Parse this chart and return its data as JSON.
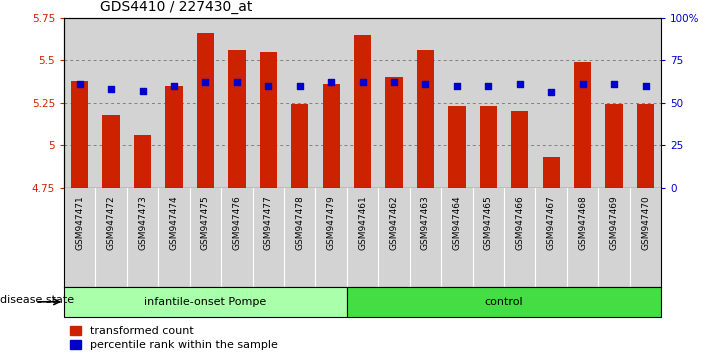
{
  "title": "GDS4410 / 227430_at",
  "samples": [
    "GSM947471",
    "GSM947472",
    "GSM947473",
    "GSM947474",
    "GSM947475",
    "GSM947476",
    "GSM947477",
    "GSM947478",
    "GSM947479",
    "GSM947461",
    "GSM947462",
    "GSM947463",
    "GSM947464",
    "GSM947465",
    "GSM947466",
    "GSM947467",
    "GSM947468",
    "GSM947469",
    "GSM947470"
  ],
  "bar_values": [
    5.38,
    5.18,
    5.06,
    5.35,
    5.66,
    5.56,
    5.55,
    5.24,
    5.36,
    5.65,
    5.4,
    5.56,
    5.23,
    5.23,
    5.2,
    4.93,
    5.49,
    5.24,
    5.24
  ],
  "dot_values": [
    5.36,
    5.33,
    5.32,
    5.35,
    5.37,
    5.37,
    5.35,
    5.35,
    5.37,
    5.37,
    5.37,
    5.36,
    5.35,
    5.35,
    5.36,
    5.31,
    5.36,
    5.36,
    5.35
  ],
  "groups": [
    {
      "label": "infantile-onset Pompe",
      "start": 0,
      "end": 9,
      "color": "#aaffaa"
    },
    {
      "label": "control",
      "start": 9,
      "end": 19,
      "color": "#44dd44"
    }
  ],
  "ymin": 4.75,
  "ymax": 5.75,
  "yticks": [
    4.75,
    5.0,
    5.25,
    5.5,
    5.75
  ],
  "ytick_labels": [
    "4.75",
    "5",
    "5.25",
    "5.5",
    "5.75"
  ],
  "grid_ticks": [
    5.0,
    5.25,
    5.5
  ],
  "right_yticks": [
    0,
    25,
    50,
    75,
    100
  ],
  "right_ytick_labels": [
    "0",
    "25",
    "50",
    "75",
    "100%"
  ],
  "bar_color": "#cc2200",
  "dot_color": "#0000cc",
  "col_bg": "#d3d3d3",
  "legend_items": [
    {
      "label": "transformed count",
      "color": "#cc2200"
    },
    {
      "label": "percentile rank within the sample",
      "color": "#0000cc"
    }
  ],
  "disease_state_label": "disease state",
  "title_fontsize": 10,
  "tick_fontsize": 7.5,
  "label_fontsize": 8
}
